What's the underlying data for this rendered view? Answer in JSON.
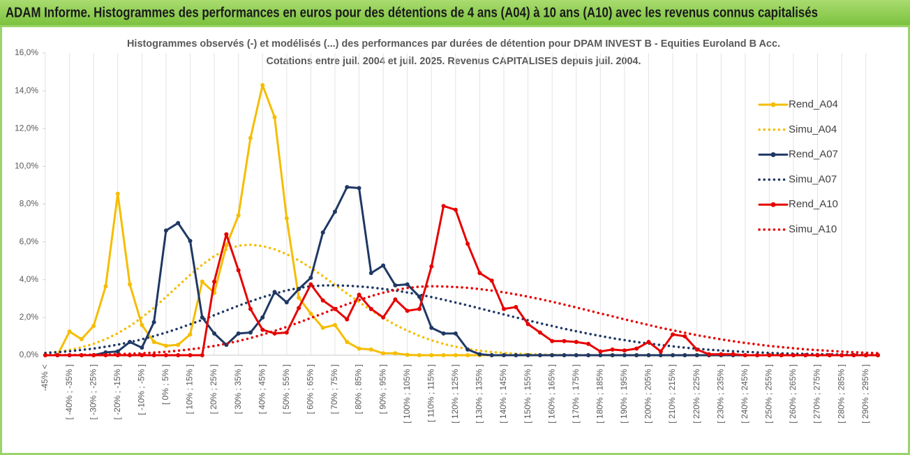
{
  "header": {
    "title": "ADAM Informe. Histogrammes des performances en euros pour des détentions de 4 ans (A04) à 10 ans (A10) avec les revenus connus capitalisés"
  },
  "chart_data": {
    "type": "line",
    "title": "Histogrammes observés (-) et modélisés (...) des performances par durées de détention pour DPAM INVEST B - Equities Euroland B Acc.",
    "subtitle": "Cotations entre juil. 2004 et juil. 2025. Revenus CAPITALISES depuis juil. 2004.",
    "categories": [
      "-45% <",
      null,
      "[ -40% ; -35% ]",
      null,
      "[ -30% ; -25% ]",
      null,
      "[ -20% ; -15% ]",
      null,
      "[ -10% ; -5% ]",
      null,
      "[ 0% ; 5% ]",
      null,
      "[ 10% ; 15% ]",
      null,
      "[ 20% ; 25% ]",
      null,
      "[ 30% ; 35% ]",
      null,
      "[ 40% ; 45% ]",
      null,
      "[ 50% ; 55% ]",
      null,
      "[ 60% ; 65% ]",
      null,
      "[ 70% ; 75% ]",
      null,
      "[ 80% ; 85% ]",
      null,
      "[ 90% ; 95% ]",
      null,
      "[ 100% ; 105% ]",
      null,
      "[ 110% ; 115% ]",
      null,
      "[ 120% ; 125% ]",
      null,
      "[ 130% ; 135% ]",
      null,
      "[ 140% ; 145% ]",
      null,
      "[ 150% ; 155% ]",
      null,
      "[ 160% ; 165% ]",
      null,
      "[ 170% ; 175% ]",
      null,
      "[ 180% ; 185% ]",
      null,
      "[ 190% ; 195% ]",
      null,
      "[ 200% ; 205% ]",
      null,
      "[ 210% ; 215% ]",
      null,
      "[ 220% ; 225% ]",
      null,
      "[ 230% ; 235% ]",
      null,
      "[ 240% ; 245% ]",
      null,
      "[ 250% ; 255% ]",
      null,
      "[ 260% ; 265% ]",
      null,
      "[ 270% ; 275% ]",
      null,
      "[ 280% ; 285% ]",
      null,
      "[ 290% ; 295% ]",
      null
    ],
    "series": [
      {
        "name": "Rend_A04",
        "color": "#f5bd00",
        "style": "solid",
        "markers": true,
        "values": [
          0,
          0,
          1.25,
          0.85,
          1.55,
          3.65,
          8.55,
          3.75,
          1.6,
          0.7,
          0.5,
          0.55,
          1.1,
          3.9,
          3.3,
          5.8,
          7.4,
          11.5,
          14.3,
          12.6,
          7.25,
          3.05,
          2.2,
          1.45,
          1.6,
          0.7,
          0.35,
          0.3,
          0.1,
          0.1,
          0.02,
          0,
          0,
          0,
          0,
          0,
          0,
          0,
          0,
          0,
          0,
          0,
          0,
          0,
          0,
          0,
          0,
          0,
          0,
          0,
          0,
          0,
          0,
          0,
          0,
          0,
          0,
          0,
          0,
          0,
          0,
          0,
          0,
          0,
          0,
          0,
          0,
          0,
          0,
          0
        ]
      },
      {
        "name": "Simu_A04",
        "color": "#f5bd00",
        "style": "dotted",
        "markers": false,
        "values": [
          0.12,
          0.18,
          0.28,
          0.42,
          0.6,
          0.85,
          1.16,
          1.54,
          2.0,
          2.51,
          3.08,
          3.67,
          4.25,
          4.79,
          5.25,
          5.59,
          5.8,
          5.85,
          5.78,
          5.61,
          5.35,
          5.02,
          4.63,
          4.19,
          3.73,
          3.27,
          2.81,
          2.38,
          1.97,
          1.61,
          1.3,
          1.02,
          0.79,
          0.6,
          0.45,
          0.33,
          0.24,
          0.17,
          0.12,
          0.08,
          0.06,
          0.04,
          0.02,
          0.01,
          0,
          0,
          0,
          0,
          0,
          0,
          0,
          0,
          0,
          0,
          0,
          0,
          0,
          0,
          0,
          0,
          0,
          0,
          0,
          0,
          0,
          0,
          0,
          0,
          0,
          0
        ]
      },
      {
        "name": "Rend_A07",
        "color": "#1f3864",
        "style": "solid",
        "markers": true,
        "values": [
          0,
          0,
          0,
          0,
          0,
          0.15,
          0.2,
          0.7,
          0.4,
          1.75,
          6.6,
          7.0,
          6.05,
          2.0,
          1.15,
          0.55,
          1.15,
          1.2,
          2.0,
          3.35,
          2.8,
          3.5,
          4.1,
          6.5,
          7.6,
          8.9,
          8.85,
          4.35,
          4.75,
          3.7,
          3.75,
          3.1,
          1.45,
          1.15,
          1.15,
          0.3,
          0.05,
          0,
          0,
          0,
          0,
          0,
          0,
          0,
          0,
          0,
          0,
          0,
          0,
          0,
          0,
          0,
          0,
          0,
          0,
          0,
          0,
          0,
          0,
          0,
          0,
          0,
          0,
          0,
          0,
          0,
          0,
          0,
          0,
          0
        ]
      },
      {
        "name": "Simu_A07",
        "color": "#1f3864",
        "style": "dotted",
        "markers": false,
        "values": [
          0.12,
          0.16,
          0.21,
          0.28,
          0.35,
          0.45,
          0.56,
          0.69,
          0.84,
          1.01,
          1.2,
          1.41,
          1.64,
          1.87,
          2.12,
          2.37,
          2.62,
          2.85,
          3.07,
          3.26,
          3.43,
          3.56,
          3.65,
          3.69,
          3.7,
          3.68,
          3.64,
          3.59,
          3.51,
          3.43,
          3.32,
          3.21,
          3.08,
          2.94,
          2.79,
          2.64,
          2.48,
          2.32,
          2.16,
          2.0,
          1.85,
          1.69,
          1.55,
          1.4,
          1.27,
          1.14,
          1.02,
          0.9,
          0.8,
          0.7,
          0.62,
          0.54,
          0.47,
          0.4,
          0.34,
          0.29,
          0.25,
          0.21,
          0.18,
          0.15,
          0.12,
          0.1,
          0.08,
          0.07,
          0.06,
          0.05,
          0.04,
          0.03,
          0.02,
          0.02
        ]
      },
      {
        "name": "Rend_A10",
        "color": "#e60000",
        "style": "solid",
        "markers": true,
        "values": [
          0,
          0,
          0,
          0,
          0,
          0,
          0,
          0,
          0,
          0,
          0,
          0,
          0,
          0,
          3.9,
          6.4,
          4.5,
          2.45,
          1.35,
          1.15,
          1.2,
          2.5,
          3.75,
          2.9,
          2.45,
          1.9,
          3.2,
          2.45,
          2.0,
          2.95,
          2.35,
          2.45,
          4.7,
          7.9,
          7.7,
          5.9,
          4.35,
          3.95,
          2.45,
          2.55,
          1.65,
          1.2,
          0.75,
          0.75,
          0.7,
          0.6,
          0.2,
          0.3,
          0.25,
          0.35,
          0.7,
          0.2,
          1.1,
          1.0,
          0.3,
          0.05,
          0.05,
          0.05,
          0,
          0,
          0,
          0,
          0,
          0,
          0,
          0,
          0,
          0,
          0,
          0
        ]
      },
      {
        "name": "Simu_A10",
        "color": "#e60000",
        "style": "dotted",
        "markers": false,
        "values": [
          0.01,
          0.01,
          0.01,
          0.02,
          0.03,
          0.04,
          0.06,
          0.08,
          0.1,
          0.14,
          0.18,
          0.24,
          0.31,
          0.39,
          0.49,
          0.61,
          0.75,
          0.91,
          1.09,
          1.29,
          1.5,
          1.73,
          1.97,
          2.21,
          2.46,
          2.7,
          2.92,
          3.13,
          3.31,
          3.45,
          3.56,
          3.63,
          3.65,
          3.64,
          3.61,
          3.57,
          3.5,
          3.42,
          3.33,
          3.22,
          3.1,
          2.97,
          2.83,
          2.68,
          2.53,
          2.37,
          2.21,
          2.06,
          1.9,
          1.75,
          1.6,
          1.45,
          1.32,
          1.19,
          1.06,
          0.95,
          0.84,
          0.74,
          0.65,
          0.57,
          0.49,
          0.43,
          0.37,
          0.31,
          0.27,
          0.23,
          0.19,
          0.16,
          0.13,
          0.11
        ]
      }
    ],
    "ylim": [
      0,
      16
    ],
    "yticks": [
      {
        "value": 0,
        "label": "0,0%"
      },
      {
        "value": 2,
        "label": "2,0%"
      },
      {
        "value": 4,
        "label": "4,0%"
      },
      {
        "value": 6,
        "label": "6,0%"
      },
      {
        "value": 8,
        "label": "8,0%"
      },
      {
        "value": 10,
        "label": "10,0%"
      },
      {
        "value": 12,
        "label": "12,0%"
      },
      {
        "value": 14,
        "label": "14,0%"
      },
      {
        "value": 16,
        "label": "16,0%"
      }
    ],
    "grid": "x",
    "legend": "right"
  }
}
